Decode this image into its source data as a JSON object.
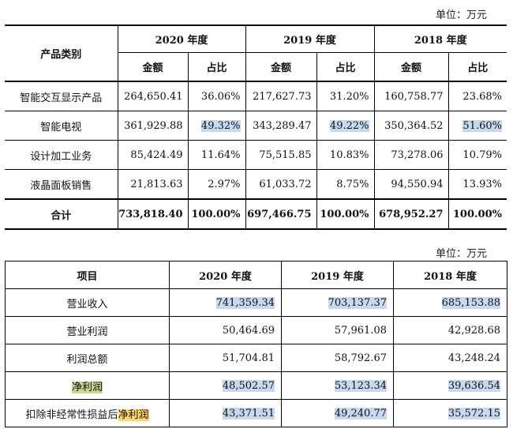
{
  "unit1": "单位：万元",
  "unit2": "单位：万元",
  "table1": {
    "header_category": "产品类别",
    "years": [
      "2020 年度",
      "2019 年度",
      "2018 年度"
    ],
    "sub_amount": "金额",
    "sub_ratio": "占比",
    "rows": [
      {
        "name": "智能交互显示产品",
        "cells": [
          "264,650.41",
          "36.06%",
          "217,627.73",
          "31.20%",
          "160,758.77",
          "23.68%"
        ]
      },
      {
        "name": "智能电视",
        "cells": [
          "361,929.88",
          "49.32%",
          "343,289.47",
          "49.22%",
          "350,364.52",
          "51.60%"
        ]
      },
      {
        "name": "设计加工业务",
        "cells": [
          "85,424.49",
          "11.64%",
          "75,515.85",
          "10.83%",
          "73,278.06",
          "10.79%"
        ]
      },
      {
        "name": "液晶面板销售",
        "cells": [
          "21,813.63",
          "2.97%",
          "61,033.72",
          "8.75%",
          "94,550.94",
          "13.93%"
        ]
      }
    ],
    "total": {
      "name": "合计",
      "cells": [
        "733,818.40",
        "100.00%",
        "697,466.75",
        "100.00%",
        "678,952.27",
        "100.00%"
      ]
    }
  },
  "table2": {
    "header_item": "项目",
    "years": [
      "2020 年度",
      "2019 年度",
      "2018 年度"
    ],
    "rows": [
      {
        "name": "营业收入",
        "cells": [
          "741,359.34",
          "703,137.37",
          "685,153.88"
        ]
      },
      {
        "name": "营业利润",
        "cells": [
          "50,464.69",
          "57,961.08",
          "42,928.68"
        ]
      },
      {
        "name": "利润总额",
        "cells": [
          "51,704.81",
          "58,792.67",
          "43,248.24"
        ]
      },
      {
        "name": "净利润",
        "cells": [
          "48,502.57",
          "53,123.34",
          "39,636.54"
        ]
      },
      {
        "name_prefix": "扣除非经常性损益后",
        "name_suffix": "净利润",
        "cells": [
          "43,371.51",
          "49,240.77",
          "35,572.15"
        ]
      }
    ]
  },
  "highlight_colors": {
    "blue": "#c6d9f0",
    "yellow": "#ffd966",
    "green": "#c8d88f"
  }
}
